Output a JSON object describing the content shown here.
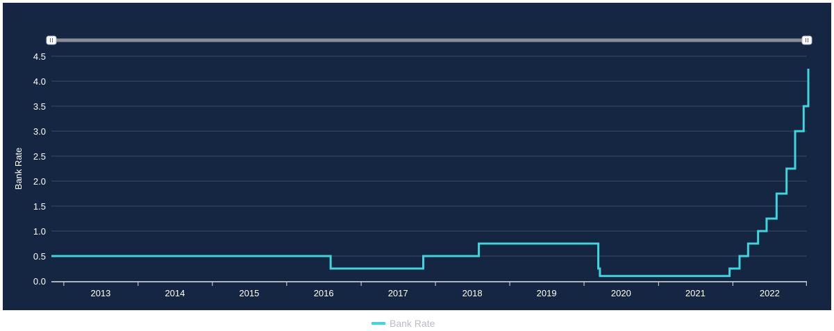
{
  "chart_data": {
    "type": "line",
    "step": true,
    "xlabel": "",
    "ylabel": "Bank Rate",
    "ylim": [
      0,
      4.5
    ],
    "xlim": [
      "2012-11-01",
      "2022-12-31"
    ],
    "x_tick_labels": [
      "2013",
      "2014",
      "2015",
      "2016",
      "2017",
      "2018",
      "2019",
      "2020",
      "2021",
      "2022"
    ],
    "y_tick_labels": [
      "0.0",
      "0.5",
      "1.0",
      "1.5",
      "2.0",
      "2.5",
      "3.0",
      "3.5",
      "4.0",
      "4.5"
    ],
    "grid": true,
    "legend": "bottom-center",
    "navigator_range": [
      "2012-11-01",
      "2022-12-31"
    ],
    "series": [
      {
        "name": "Bank Rate",
        "color": "#3ed6dc",
        "points": [
          {
            "date": "2012-11-01",
            "value": 0.5
          },
          {
            "date": "2016-08-04",
            "value": 0.25
          },
          {
            "date": "2017-11-02",
            "value": 0.5
          },
          {
            "date": "2018-08-02",
            "value": 0.75
          },
          {
            "date": "2020-03-11",
            "value": 0.25
          },
          {
            "date": "2020-03-19",
            "value": 0.1
          },
          {
            "date": "2021-12-16",
            "value": 0.25
          },
          {
            "date": "2022-02-03",
            "value": 0.5
          },
          {
            "date": "2022-03-17",
            "value": 0.75
          },
          {
            "date": "2022-05-05",
            "value": 1.0
          },
          {
            "date": "2022-06-16",
            "value": 1.25
          },
          {
            "date": "2022-08-04",
            "value": 1.75
          },
          {
            "date": "2022-09-22",
            "value": 2.25
          },
          {
            "date": "2022-11-03",
            "value": 3.0
          },
          {
            "date": "2022-12-15",
            "value": 3.5
          },
          {
            "date": "2023-02-02",
            "value": 4.0
          },
          {
            "date": "2023-03-23",
            "value": 4.25
          },
          {
            "date": "2023-04-01",
            "value": 4.25
          }
        ]
      }
    ]
  },
  "colors": {
    "panel_background": "#142641",
    "grid": "#3d4b63",
    "navigator_bar": "#8a8f96",
    "line": "#3ed6dc"
  },
  "legend": {
    "label": "Bank Rate"
  },
  "icons": {
    "navigator_handles": "range-handle-icon"
  }
}
